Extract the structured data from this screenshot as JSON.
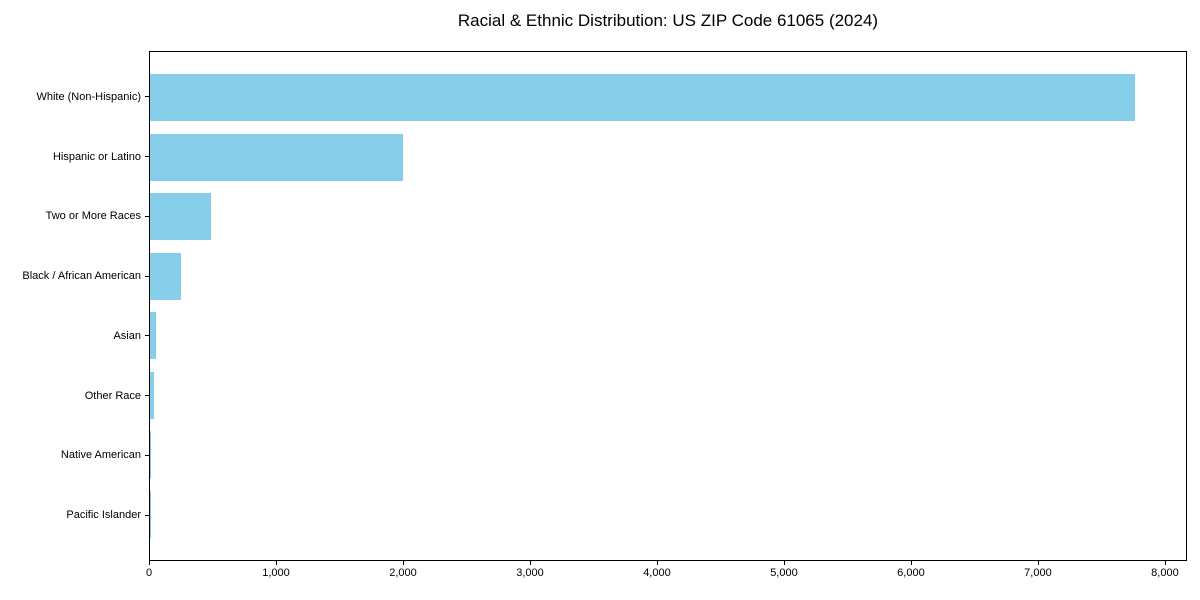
{
  "chart_data": {
    "type": "bar",
    "orientation": "horizontal",
    "title": "Racial & Ethnic Distribution: US ZIP Code 61065 (2024)",
    "xlabel": "",
    "ylabel": "",
    "categories": [
      "White (Non-Hispanic)",
      "Hispanic or Latino",
      "Two or More Races",
      "Black / African American",
      "Asian",
      "Other Race",
      "Native American",
      "Pacific Islander"
    ],
    "values": [
      7757,
      1990,
      480,
      245,
      47,
      31,
      8,
      2
    ],
    "xlim": [
      0,
      8158
    ],
    "xticks": [
      0,
      1000,
      2000,
      3000,
      4000,
      5000,
      6000,
      7000,
      8000
    ],
    "xtick_labels": [
      "0",
      "1,000",
      "2,000",
      "3,000",
      "4,000",
      "5,000",
      "6,000",
      "7,000",
      "8,000"
    ],
    "bar_color": "#87CEEB",
    "frame_color": "#000000",
    "text_color": "#000000",
    "background_color": "#ffffff",
    "grid": false,
    "legend": null
  }
}
